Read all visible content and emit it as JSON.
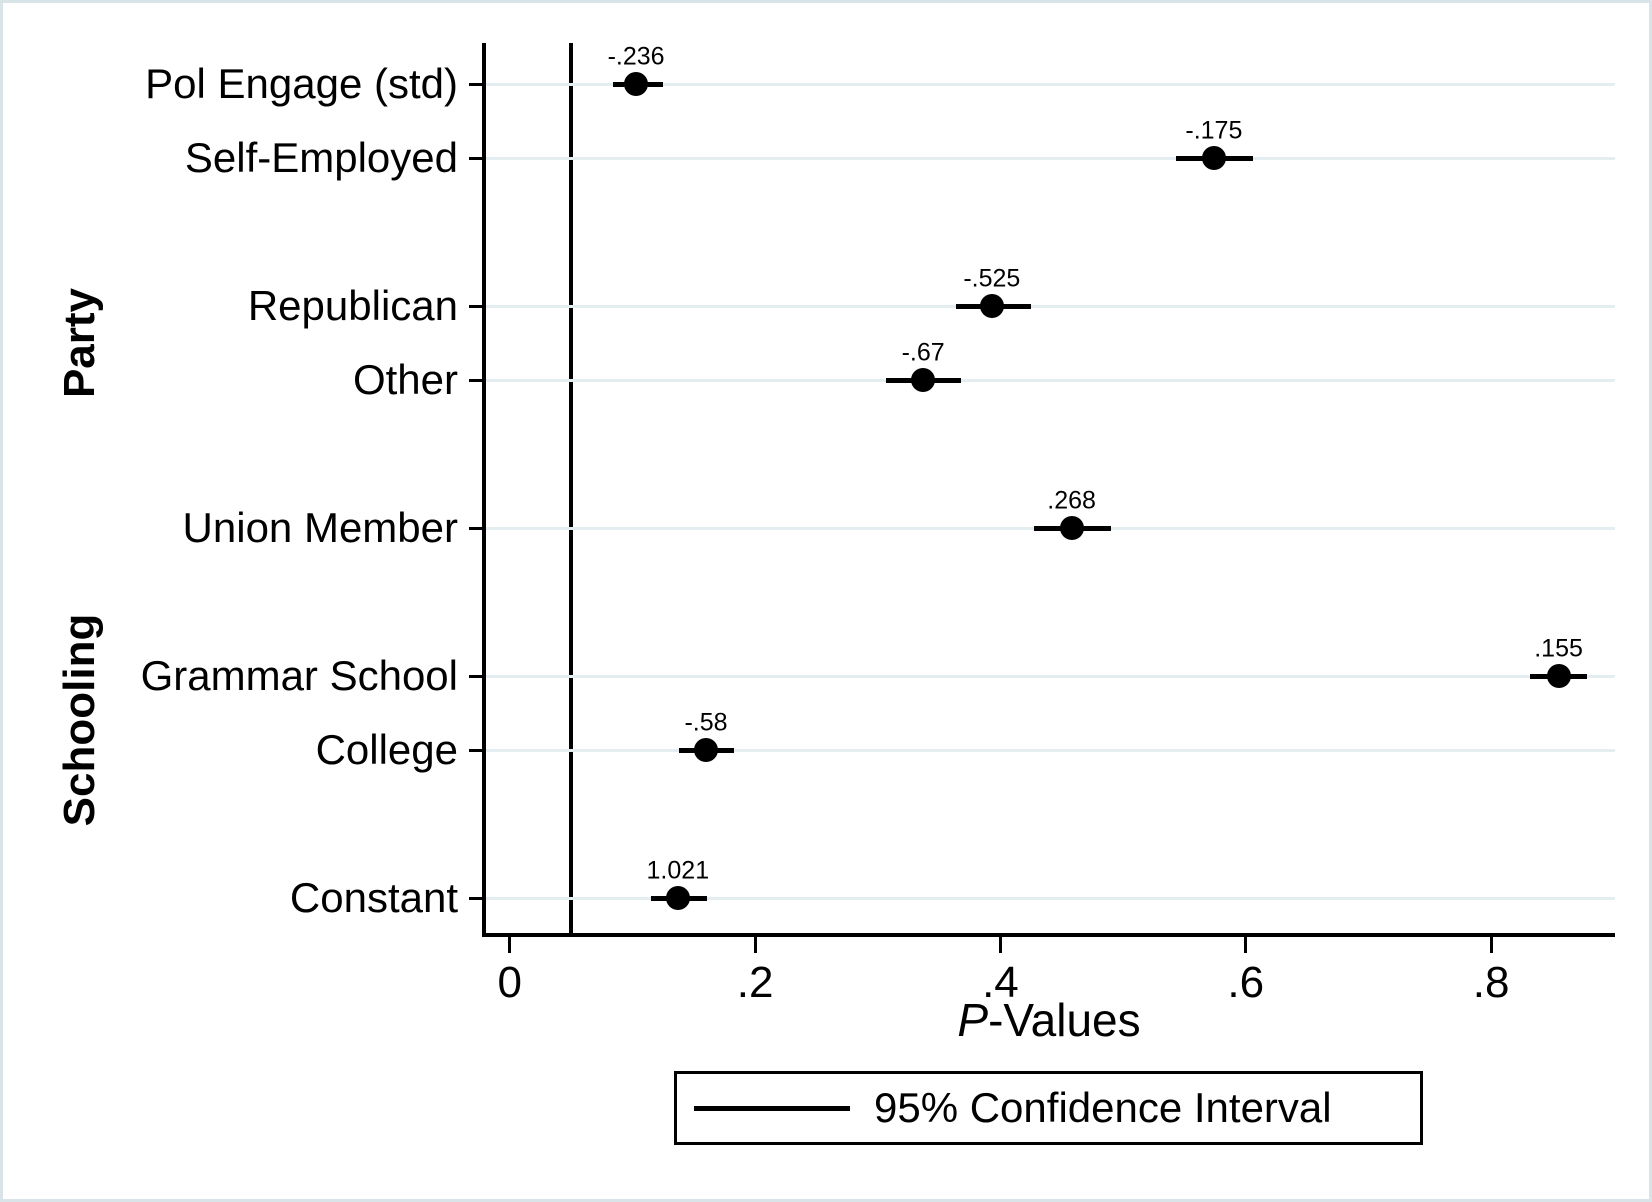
{
  "chart_data": {
    "type": "scatter",
    "subtype": "coefficient-dot-whisker-plot",
    "title": "",
    "xlabel": "P-Values",
    "xlabel_parts": {
      "italic": "P",
      "rest": "-Values"
    },
    "ylabel": "",
    "xlim": [
      -0.021,
      0.901
    ],
    "grid": true,
    "ref_line_x": 0.05,
    "x_ticks": [
      {
        "value": 0.0,
        "label": "0"
      },
      {
        "value": 0.2,
        "label": ".2"
      },
      {
        "value": 0.4,
        "label": ".4"
      },
      {
        "value": 0.6,
        "label": ".6"
      },
      {
        "value": 0.8,
        "label": ".8"
      }
    ],
    "group_labels": [
      {
        "name": "Party",
        "center_slot": 4.5
      },
      {
        "name": "Schooling",
        "center_slot": 9.6
      }
    ],
    "points": [
      {
        "label": "Pol Engage (std)",
        "slot": 1,
        "p_value": 0.103,
        "ci_low": 0.084,
        "ci_high": 0.125,
        "estimate_label": "-.236"
      },
      {
        "label": "Self-Employed",
        "slot": 2,
        "p_value": 0.574,
        "ci_low": 0.543,
        "ci_high": 0.606,
        "estimate_label": "-.175"
      },
      {
        "label": "Republican",
        "slot": 4,
        "p_value": 0.393,
        "ci_low": 0.364,
        "ci_high": 0.425,
        "estimate_label": "-.525",
        "group": "Party"
      },
      {
        "label": "Other",
        "slot": 5,
        "p_value": 0.337,
        "ci_low": 0.307,
        "ci_high": 0.368,
        "estimate_label": "-.67",
        "group": "Party"
      },
      {
        "label": "Union Member",
        "slot": 7,
        "p_value": 0.458,
        "ci_low": 0.427,
        "ci_high": 0.49,
        "estimate_label": ".268"
      },
      {
        "label": "Grammar School",
        "slot": 9,
        "p_value": 0.855,
        "ci_low": 0.832,
        "ci_high": 0.878,
        "estimate_label": ".155",
        "group": "Schooling"
      },
      {
        "label": "College",
        "slot": 10,
        "p_value": 0.16,
        "ci_low": 0.138,
        "ci_high": 0.183,
        "estimate_label": "-.58",
        "group": "Schooling"
      },
      {
        "label": "Constant",
        "slot": 12,
        "p_value": 0.137,
        "ci_low": 0.115,
        "ci_high": 0.161,
        "estimate_label": "1.021"
      }
    ],
    "legend": {
      "label": "95% Confidence Interval",
      "position": "bottom-center"
    },
    "colors": {
      "marker": "#000000",
      "ci_line": "#000000",
      "ref_line": "#000000",
      "axis": "#000000",
      "gridline": "#e4edf0",
      "figure_border": "#d9e4e8",
      "background": "#ffffff"
    }
  }
}
